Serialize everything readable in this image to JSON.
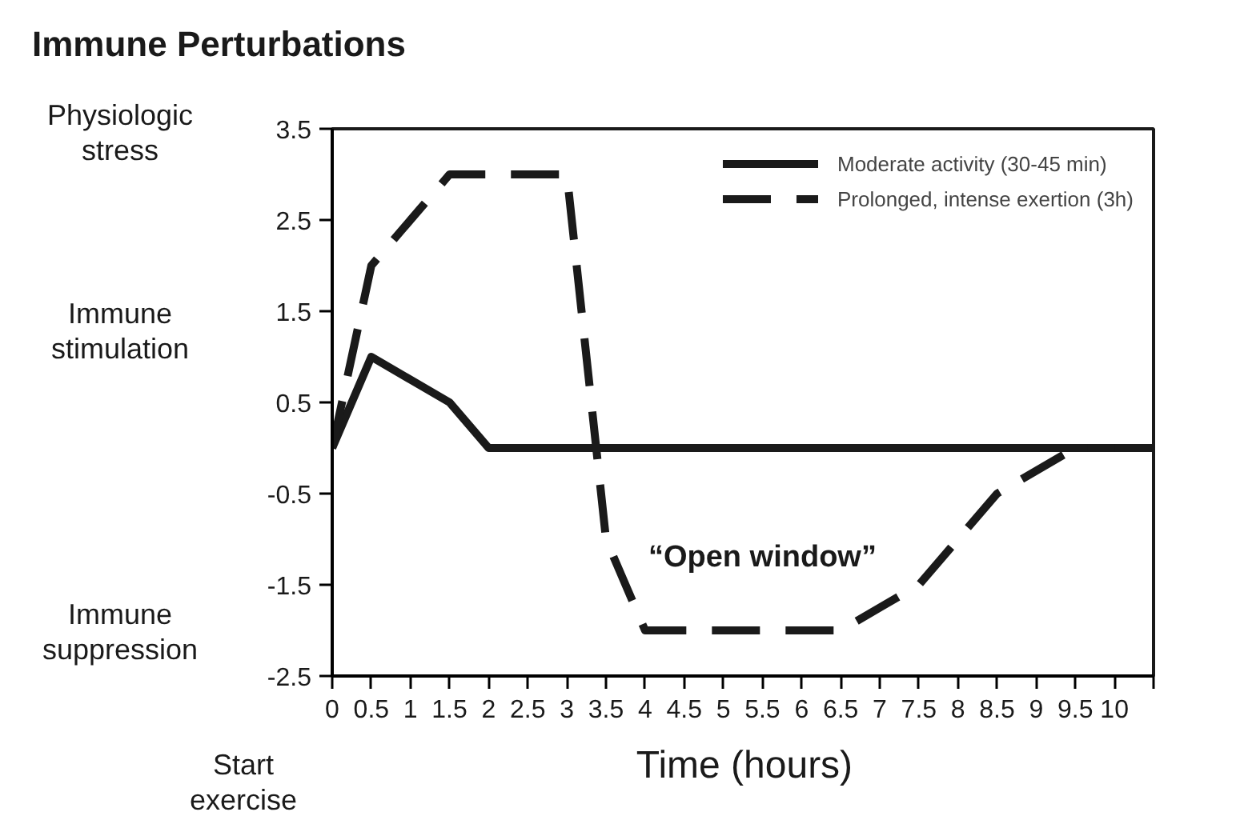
{
  "chart_data": {
    "type": "line",
    "title": "Immune Perturbations",
    "xlabel": "Time (hours)",
    "annotations": [
      "Physiologic\nstress",
      "Immune\nstimulation",
      "Immune\nsuppression",
      "Start\nexercise",
      "“Open window”"
    ],
    "xlim": [
      0,
      10.5
    ],
    "ylim": [
      -2.5,
      3.5
    ],
    "xticks": [
      0,
      0.5,
      1,
      1.5,
      2,
      2.5,
      3,
      3.5,
      4,
      4.5,
      5,
      5.5,
      6,
      6.5,
      7,
      7.5,
      8,
      8.5,
      9,
      9.5,
      10,
      {
        "value": 10.5,
        "label": null
      }
    ],
    "yticks": [
      -2.5,
      -1.5,
      -0.5,
      0.5,
      1.5,
      2.5,
      3.5
    ],
    "grid": false,
    "legend": "top right",
    "series": [
      {
        "name": "Moderate activity (30-45 min)",
        "color": "#1a1a1a",
        "line_style": "solid",
        "x": [
          0,
          0.5,
          1.5,
          2,
          10.5
        ],
        "values": [
          0,
          1,
          0.5,
          0,
          0
        ]
      },
      {
        "name": "Prolonged, intense exertion (3h)",
        "color": "#1a1a1a",
        "line_style": "dashed",
        "x": [
          0,
          0.5,
          1.5,
          3,
          3.5,
          4,
          6,
          6.5,
          7.5,
          8.5,
          9.5,
          10
        ],
        "values": [
          0,
          2,
          3,
          3,
          -1,
          -2,
          -2,
          -2,
          -1.5,
          -0.5,
          0,
          0
        ]
      }
    ]
  }
}
